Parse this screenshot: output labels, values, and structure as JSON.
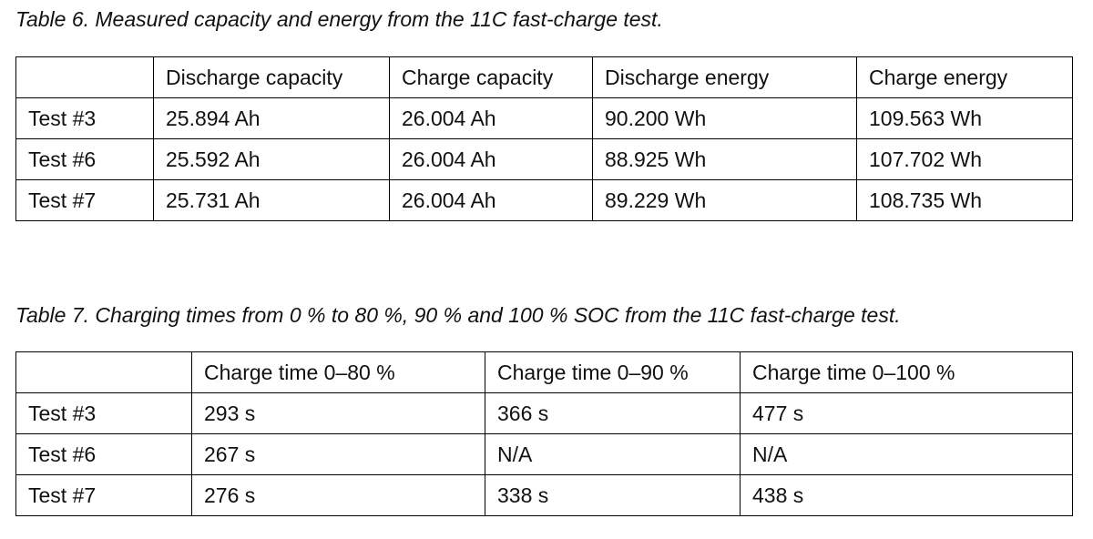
{
  "table6": {
    "caption": "Table 6. Measured capacity and energy from the 11C fast-charge test.",
    "header": [
      "Discharge capacity",
      "Charge capacity",
      "Discharge energy",
      "Charge energy"
    ],
    "rows": [
      [
        "Test #3",
        "25.894 Ah",
        "26.004 Ah",
        "90.200 Wh",
        "109.563 Wh"
      ],
      [
        "Test #6",
        "25.592 Ah",
        "26.004 Ah",
        "88.925 Wh",
        "107.702 Wh"
      ],
      [
        "Test #7",
        "25.731 Ah",
        "26.004 Ah",
        "89.229 Wh",
        "108.735 Wh"
      ]
    ]
  },
  "table7": {
    "caption": "Table 7. Charging times from 0 % to 80 %, 90 % and 100 % SOC from the 11C fast-charge test.",
    "header": [
      "Charge time 0–80 %",
      "Charge time 0–90 %",
      "Charge time 0–100 %"
    ],
    "rows": [
      [
        "Test #3",
        "293 s",
        "366 s",
        "477 s"
      ],
      [
        "Test #6",
        "267 s",
        "N/A",
        "N/A"
      ],
      [
        "Test #7",
        "276 s",
        "338 s",
        "438 s"
      ]
    ]
  }
}
